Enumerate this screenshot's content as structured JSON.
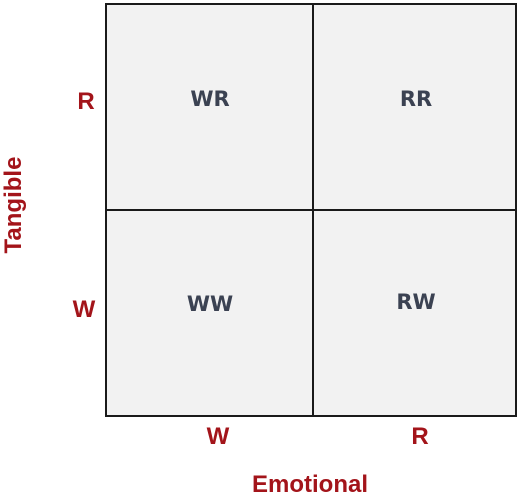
{
  "matrix": {
    "cells": {
      "top_left": "WR",
      "top_right": "RR",
      "bottom_left": "WW",
      "bottom_right": "RW"
    },
    "x_axis": {
      "title": "Emotional",
      "ticks": [
        "W",
        "R"
      ]
    },
    "y_axis": {
      "title": "Tangible",
      "ticks": [
        "R",
        "W"
      ]
    }
  },
  "colors": {
    "axis_text": "#a3141a",
    "cell_text": "#3b4252",
    "cell_fill": "#f2f2f2",
    "grid_line": "#1a1a1a"
  }
}
